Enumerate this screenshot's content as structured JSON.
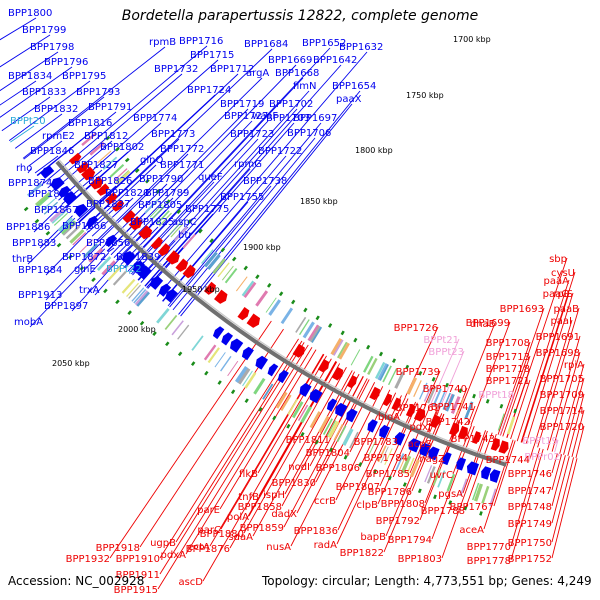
{
  "title": "Bordetella parapertussis 12822, complete genome",
  "footer": {
    "accession": "Accession: NC_002928",
    "stats": "Topology: circular; Length: 4,773,551 bp; Genes: 4,249"
  },
  "colors": {
    "forward": "#0000ee",
    "reverse": "#ee0000",
    "trna_forward": "#2aa9d9",
    "trna_reverse": "#f0a0d8",
    "tick": "#1a8c1a",
    "backbone": "#707070"
  },
  "kbp_ticks": [
    "1700 kbp",
    "1750 kbp",
    "1800 kbp",
    "1850 kbp",
    "1900 kbp",
    "1950 kbp",
    "2000 kbp",
    "2050 kbp"
  ],
  "forward_labels": [
    "BPP1800",
    "BPP1799",
    "BPP1798",
    "BPP1796",
    "BPP1834",
    "BPP1795",
    "BPP1833",
    "BPP1793",
    "BPP1832",
    "BPP1791",
    "BPPt20",
    "BPP1816",
    "rpmE2",
    "BPP1812",
    "BPP1846",
    "BPP1802",
    "rho",
    "BPP1827",
    "BPP1874",
    "BPP1826",
    "BPP1868",
    "BPP1820",
    "BPP1867",
    "BPP1837",
    "BPP1886",
    "BPP1866",
    "BPP1825",
    "BPP1883",
    "BPP1856",
    "thrB",
    "BPP1872",
    "BPP1839",
    "BPP1884",
    "glnE",
    "BPPt22",
    "trxA",
    "BPP1913",
    "BPP1897",
    "mobA",
    "rpmB",
    "BPP1716",
    "BPP1715",
    "BPP1732",
    "BPP1712",
    "BPP1684",
    "BPP1652",
    "BPP1632",
    "BPP1669",
    "BPP1642",
    "argA",
    "BPP1668",
    "BPP1724",
    "fimN",
    "BPP1654",
    "BPP1703",
    "paaX",
    "BPP1719",
    "BPP1702",
    "BPP1727",
    "waaF",
    "BPP1697",
    "BPP1774",
    "BPP1723",
    "BPP1706",
    "BPP1773",
    "BPP1772",
    "BPP1722",
    "rpmG",
    "glnQ",
    "BPP1771",
    "BPP1790",
    "queF",
    "BPP1738",
    "BPP1789",
    "BPP1755",
    "BPP1805",
    "BPP1775",
    "aspC",
    "btr"
  ],
  "reverse_labels": [
    "sbp",
    "cysU",
    "paaA",
    "paaG",
    "rplS",
    "BPP1693",
    "paaB",
    "BPP1699",
    "paaI",
    "BPP1726",
    "dnaE",
    "BPP1691",
    "BPPt21",
    "BPP1708",
    "BPP1698",
    "BPPt23",
    "BPP1713",
    "rpiA",
    "BPP1718",
    "BPP1705",
    "BPP1739",
    "BPP1721",
    "BPPt18",
    "BPP1709",
    "BPP1740",
    "BPP1714",
    "BPP1761",
    "BPP1741",
    "BPP1720",
    "bioA",
    "pdxJ",
    "BPP1742",
    "BPPt19",
    "BPP1811",
    "BPP1783",
    "acpS",
    "BPP1743",
    "BPPr02",
    "BPP1804",
    "BPP1784",
    "nagZ",
    "BPP1744",
    "BPP1806",
    "BPP1785",
    "uvrC",
    "BPP1746",
    "nodI",
    "BPP1807",
    "BPP1786",
    "pgsA",
    "BPP1747",
    "BPP1830",
    "clpB",
    "BPP1808",
    "BPP1788",
    "BPP1767",
    "BPP1748",
    "dadX",
    "BPP1792",
    "aceA",
    "BPP1749",
    "BPP1836",
    "bapB",
    "BPP1794",
    "BPP1770",
    "BPP1750",
    "radA",
    "BPP1822",
    "BPP1803",
    "BPP1778",
    "BPP1752",
    "flkB",
    "BPP1858",
    "ispH",
    "BPP1859",
    "ccrB",
    "tnfB",
    "BPP1880",
    "polA",
    "nusA",
    "sdaA",
    "BPP1876",
    "parE",
    "parC",
    "BPP1918",
    "ectA",
    "pdxA",
    "ugpB",
    "BPP1932",
    "BPP1910",
    "BPP1911",
    "ascD",
    "BPP1915"
  ]
}
